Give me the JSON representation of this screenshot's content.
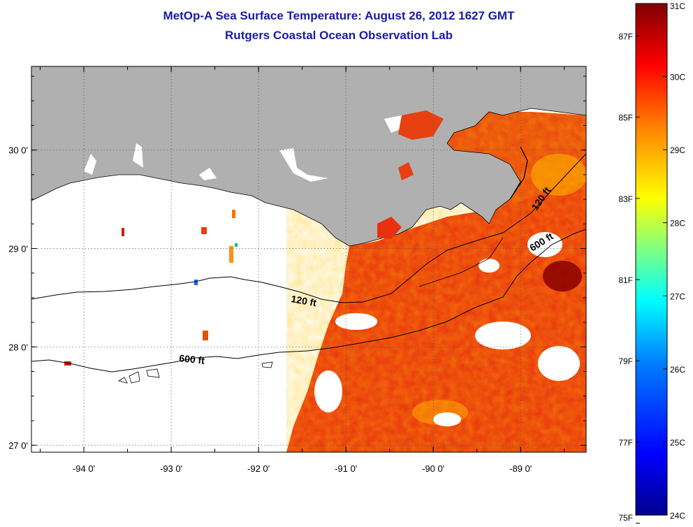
{
  "title": "MetOp-A Sea Surface Temperature:  August 26, 2012 1627 GMT",
  "subtitle": "Rutgers Coastal Ocean Observation Lab",
  "map": {
    "lon_range": [
      -94.6,
      -88.25
    ],
    "lat_range": [
      26.93,
      30.85
    ],
    "lon_ticks": [
      -94,
      -93,
      -92,
      -91,
      -90,
      -89
    ],
    "lon_tick_labels": [
      "-94 0'",
      "-93 0'",
      "-92 0'",
      "-91 0'",
      "-90 0'",
      "-89 0'"
    ],
    "lat_ticks": [
      30,
      29,
      28,
      27
    ],
    "lat_tick_labels": [
      "30 0'",
      "29 0'",
      "28 0'",
      "27 0'"
    ],
    "grid": "dotted",
    "land_color": "#b0b0b0",
    "contours": [
      {
        "label": "120 ft"
      },
      {
        "label": "600 ft"
      },
      {
        "label": "120 ft"
      },
      {
        "label": "600 ft"
      }
    ]
  },
  "colorbar": {
    "celsius_labels": [
      "31C",
      "30C",
      "29C",
      "28C",
      "27C",
      "26C",
      "25C",
      "24C"
    ],
    "celsius_values": [
      31,
      30,
      29,
      28,
      27,
      26,
      25,
      24
    ],
    "fahrenheit_labels": [
      "87F",
      "85F",
      "83F",
      "81F",
      "79F",
      "77F",
      "75F"
    ],
    "fahrenheit_values": [
      87,
      85,
      83,
      81,
      79,
      77,
      75
    ],
    "range_c": [
      24,
      31
    ],
    "colors": [
      "#00008f",
      "#0000ff",
      "#0080ff",
      "#00ffff",
      "#80ff80",
      "#ffff00",
      "#ff8000",
      "#ff0000",
      "#800000"
    ]
  }
}
